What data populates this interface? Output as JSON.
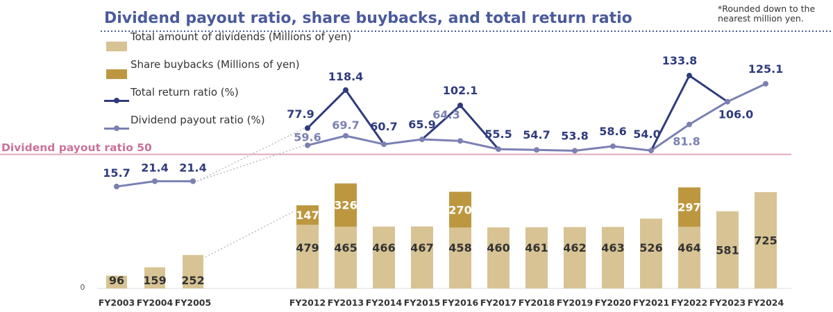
{
  "title": "Dividend payout ratio, share buybacks, and total return ratio",
  "note": "*Rounded down to the nearest million yen.",
  "reference_line": {
    "label": "Dividend payout ratio 50",
    "value": 50
  },
  "colors": {
    "title": "#4a5a9c",
    "dividends_bar": "#d8c394",
    "buybacks_bar": "#bd9740",
    "total_return_line": "#2f3b7d",
    "payout_line": "#7b80b3",
    "reference_line": "#e0a8bd",
    "connector": "#bbbbbb"
  },
  "legend": [
    {
      "label": "Total amount of dividends (Millions of yen)",
      "icon": "bar-swatch"
    },
    {
      "label": "Share buybacks (Millions of yen)",
      "icon": "bar-swatch"
    },
    {
      "label": "Total return ratio (%)",
      "icon": "line-marker"
    },
    {
      "label": "Dividend payout ratio (%)",
      "icon": "line-marker"
    }
  ],
  "chart_data": {
    "type": "bar",
    "categories": [
      "FY2003",
      "FY2004",
      "FY2005",
      "FY2012",
      "FY2013",
      "FY2014",
      "FY2015",
      "FY2016",
      "FY2017",
      "FY2018",
      "FY2019",
      "FY2020",
      "FY2021",
      "FY2022",
      "FY2023",
      "FY2024"
    ],
    "y_zero_label": "0",
    "series": [
      {
        "name": "Total amount of dividends (Millions of yen)",
        "type": "bar",
        "stack": "amount",
        "values": [
          96,
          159,
          252,
          479,
          465,
          466,
          467,
          458,
          460,
          461,
          462,
          463,
          526,
          464,
          581,
          725
        ]
      },
      {
        "name": "Share buybacks (Millions of yen)",
        "type": "bar",
        "stack": "amount",
        "values": [
          null,
          null,
          null,
          147,
          326,
          null,
          null,
          270,
          null,
          null,
          null,
          null,
          null,
          297,
          null,
          null
        ]
      },
      {
        "name": "Total return ratio (%)",
        "type": "line",
        "values": [
          15.7,
          21.4,
          21.4,
          77.9,
          118.4,
          60.7,
          65.9,
          102.1,
          55.5,
          54.7,
          53.8,
          58.6,
          54.0,
          133.8,
          106.0,
          125.1
        ]
      },
      {
        "name": "Dividend payout ratio (%)",
        "type": "line",
        "values": [
          15.7,
          21.4,
          21.4,
          59.6,
          69.7,
          60.7,
          65.9,
          64.3,
          55.5,
          54.7,
          53.8,
          58.6,
          54.0,
          81.8,
          106.0,
          125.1
        ]
      }
    ],
    "line_labels": [
      {
        "series": "total",
        "index": 0,
        "text": "15.7"
      },
      {
        "series": "total",
        "index": 1,
        "text": "21.4"
      },
      {
        "series": "total",
        "index": 2,
        "text": "21.4"
      },
      {
        "series": "total",
        "index": 3,
        "text": "77.9"
      },
      {
        "series": "total",
        "index": 4,
        "text": "118.4"
      },
      {
        "series": "total",
        "index": 5,
        "text": "60.7"
      },
      {
        "series": "total",
        "index": 6,
        "text": "65.9"
      },
      {
        "series": "total",
        "index": 7,
        "text": "102.1"
      },
      {
        "series": "total",
        "index": 8,
        "text": "55.5"
      },
      {
        "series": "total",
        "index": 9,
        "text": "54.7"
      },
      {
        "series": "total",
        "index": 10,
        "text": "53.8"
      },
      {
        "series": "total",
        "index": 11,
        "text": "58.6"
      },
      {
        "series": "total",
        "index": 12,
        "text": "54.0"
      },
      {
        "series": "total",
        "index": 13,
        "text": "133.8"
      },
      {
        "series": "total",
        "index": 14,
        "text": "106.0"
      },
      {
        "series": "total",
        "index": 15,
        "text": "125.1"
      },
      {
        "series": "payout",
        "index": 3,
        "text": "59.6"
      },
      {
        "series": "payout",
        "index": 4,
        "text": "69.7"
      },
      {
        "series": "payout",
        "index": 7,
        "text": "64.3"
      },
      {
        "series": "payout",
        "index": 13,
        "text": "81.8"
      }
    ]
  }
}
